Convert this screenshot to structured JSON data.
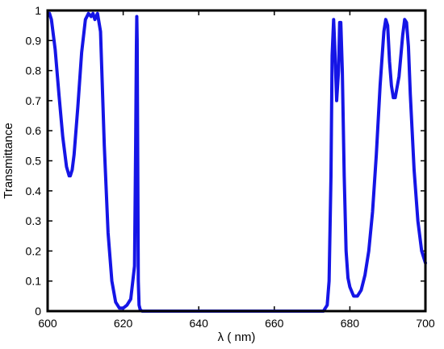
{
  "chart_data": {
    "type": "line",
    "title": "",
    "xlabel": "λ ( nm)",
    "ylabel": "Transmittance",
    "xlim": [
      600,
      700
    ],
    "ylim": [
      0,
      1
    ],
    "x_ticks": [
      "600",
      "620",
      "640",
      "660",
      "680",
      "700"
    ],
    "y_ticks": [
      "0",
      "0.1",
      "0.2",
      "0.3",
      "0.4",
      "0.5",
      "0.6",
      "0.7",
      "0.8",
      "0.9",
      "1"
    ],
    "grid": false,
    "legend": "none",
    "series": [
      {
        "color": "#1515e6",
        "x": [
          600.5,
          601,
          602,
          603,
          604,
          605,
          605.7,
          606,
          606.5,
          607,
          608,
          609,
          610,
          610.8,
          611.5,
          612,
          612.5,
          613.2,
          614,
          615,
          616,
          617,
          618,
          619,
          620,
          621,
          622,
          623,
          623.3,
          623.5,
          623.6,
          623.7,
          623.85,
          624,
          624.2,
          624.5,
          625,
          630,
          640,
          650,
          660,
          670,
          673,
          674,
          674.5,
          675,
          675.3,
          675.7,
          676,
          676.5,
          677,
          677.3,
          677.6,
          678,
          678.5,
          679,
          679.5,
          680,
          681,
          682,
          683,
          684,
          685,
          686,
          687,
          688,
          689,
          689.5,
          690,
          690.5,
          691,
          691.5,
          692,
          693,
          694,
          694.5,
          695,
          695.5,
          696,
          697,
          698,
          699,
          700
        ],
        "y": [
          0.99,
          0.97,
          0.87,
          0.72,
          0.58,
          0.48,
          0.45,
          0.45,
          0.47,
          0.52,
          0.68,
          0.86,
          0.97,
          0.99,
          0.98,
          0.99,
          0.97,
          0.99,
          0.93,
          0.55,
          0.26,
          0.1,
          0.03,
          0.01,
          0.01,
          0.02,
          0.04,
          0.15,
          0.55,
          0.88,
          0.98,
          0.9,
          0.5,
          0.1,
          0.02,
          0.005,
          0.0,
          0.0,
          0.0,
          0.0,
          0.0,
          0.0,
          0.0,
          0.02,
          0.1,
          0.45,
          0.85,
          0.97,
          0.88,
          0.7,
          0.8,
          0.96,
          0.96,
          0.8,
          0.45,
          0.2,
          0.11,
          0.08,
          0.05,
          0.05,
          0.07,
          0.12,
          0.2,
          0.33,
          0.52,
          0.75,
          0.93,
          0.97,
          0.95,
          0.83,
          0.75,
          0.71,
          0.71,
          0.78,
          0.92,
          0.97,
          0.96,
          0.88,
          0.72,
          0.47,
          0.3,
          0.2,
          0.16
        ]
      }
    ]
  }
}
